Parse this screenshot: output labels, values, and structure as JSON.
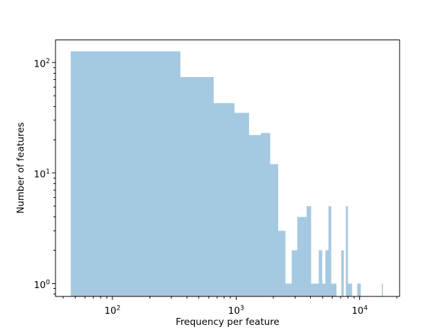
{
  "chart_data": {
    "type": "histogram",
    "title": "",
    "xlabel": "Frequency per feature",
    "ylabel": "Number of features",
    "xscale": "log",
    "yscale": "log",
    "bar_color": "#a5c9e1",
    "axis_color": "#000000",
    "background_color": "#ffffff",
    "bin_start": 46,
    "bin_width": 307,
    "bin_count": 50,
    "counts": [
      126,
      74,
      43,
      35,
      22,
      23,
      12,
      3,
      1,
      2,
      4,
      4,
      5,
      1,
      1,
      2,
      1,
      2,
      5,
      1,
      1,
      0,
      0,
      2,
      0,
      5,
      1,
      1,
      0,
      0,
      0,
      1,
      1,
      0,
      0,
      0,
      0,
      0,
      0,
      0,
      0,
      0,
      0,
      0,
      0,
      0,
      0,
      0,
      0,
      1
    ],
    "xlim": [
      34.6,
      21000
    ],
    "ylim": [
      0.763,
      160.1
    ],
    "x_major_ticks": [
      100,
      1000,
      10000
    ],
    "y_major_ticks": [
      1,
      10,
      100
    ],
    "x_tick_labels": [
      {
        "base": "10",
        "exp": "2"
      },
      {
        "base": "10",
        "exp": "3"
      },
      {
        "base": "10",
        "exp": "4"
      }
    ],
    "y_tick_labels": [
      {
        "base": "10",
        "exp": "0"
      },
      {
        "base": "10",
        "exp": "1"
      },
      {
        "base": "10",
        "exp": "2"
      }
    ],
    "grid": false,
    "legend": null
  }
}
